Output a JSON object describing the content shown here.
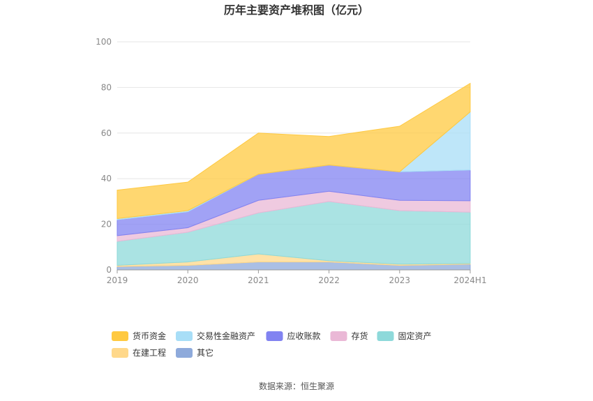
{
  "chart_data": {
    "type": "area",
    "stacked": true,
    "title": "历年主要资产堆积图（亿元）",
    "categories": [
      "2019",
      "2020",
      "2021",
      "2022",
      "2023",
      "2024H1"
    ],
    "ylim": [
      0,
      100
    ],
    "yticks": [
      0,
      20,
      40,
      60,
      80,
      100
    ],
    "grid": true,
    "legend_position": "bottom",
    "series": [
      {
        "name": "其它",
        "color": "#8eaadb",
        "values": [
          1.5,
          2.0,
          3.5,
          3.5,
          2.0,
          2.5
        ]
      },
      {
        "name": "在建工程",
        "color": "#ffd88a",
        "values": [
          0.5,
          1.5,
          3.5,
          0.5,
          0.5,
          0.3
        ]
      },
      {
        "name": "固定资产",
        "color": "#8ed9da",
        "values": [
          10.5,
          13.0,
          18.0,
          26.0,
          23.5,
          22.5
        ]
      },
      {
        "name": "存货",
        "color": "#eab8d6",
        "values": [
          2.5,
          2.0,
          5.5,
          4.5,
          4.5,
          5.0
        ]
      },
      {
        "name": "应收账款",
        "color": "#8183f1",
        "values": [
          7.0,
          7.0,
          11.5,
          11.5,
          12.5,
          13.5
        ]
      },
      {
        "name": "交易性金融资产",
        "color": "#a8def7",
        "values": [
          0.5,
          0.5,
          0.0,
          0.0,
          0.0,
          25.5
        ]
      },
      {
        "name": "货币资金",
        "color": "#ffc940",
        "values": [
          12.5,
          12.5,
          18.0,
          12.5,
          20.0,
          12.5
        ]
      }
    ],
    "legend_order": [
      "货币资金",
      "交易性金融资产",
      "应收账款",
      "存货",
      "固定资产",
      "在建工程",
      "其它"
    ],
    "source": "数据来源：恒生聚源"
  }
}
